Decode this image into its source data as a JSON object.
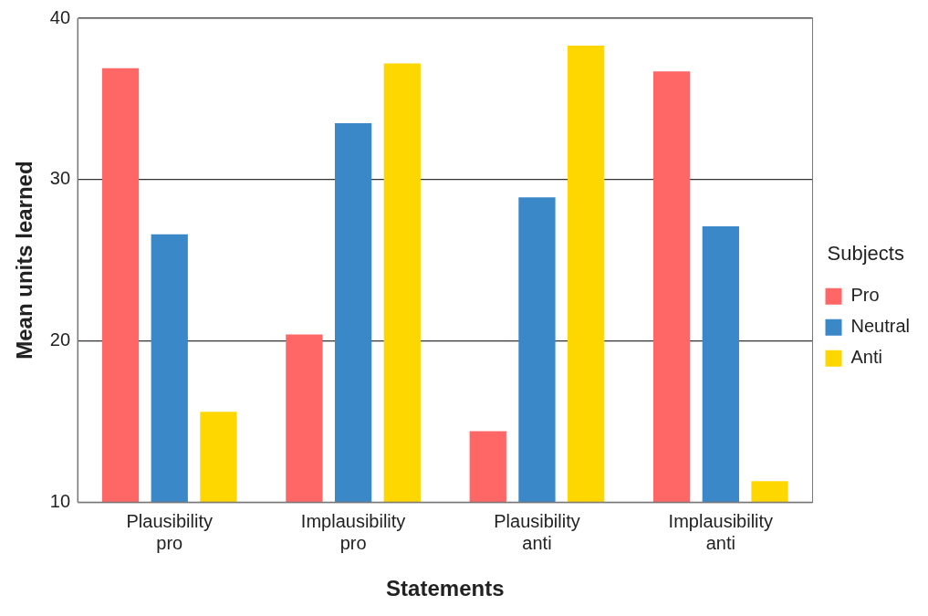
{
  "chart_data": {
    "type": "bar",
    "xlabel": "Statements",
    "ylabel": "Mean units learned",
    "legend_title": "Subjects",
    "categories": [
      "Plausibility\npro",
      "Implausibility\npro",
      "Plausibility\nanti",
      "Implausibility\nanti"
    ],
    "series": [
      {
        "name": "Pro",
        "color": "#ff6666",
        "values": [
          36.9,
          20.4,
          14.4,
          36.7
        ]
      },
      {
        "name": "Neutral",
        "color": "#3a88c8",
        "values": [
          26.6,
          33.5,
          28.9,
          27.1
        ]
      },
      {
        "name": "Anti",
        "color": "#ffd700",
        "values": [
          15.6,
          37.2,
          38.3,
          11.3
        ]
      }
    ],
    "ylim": [
      10,
      40
    ],
    "yticks": [
      10,
      20,
      30,
      40
    ],
    "grid": "y",
    "legend": "right"
  }
}
